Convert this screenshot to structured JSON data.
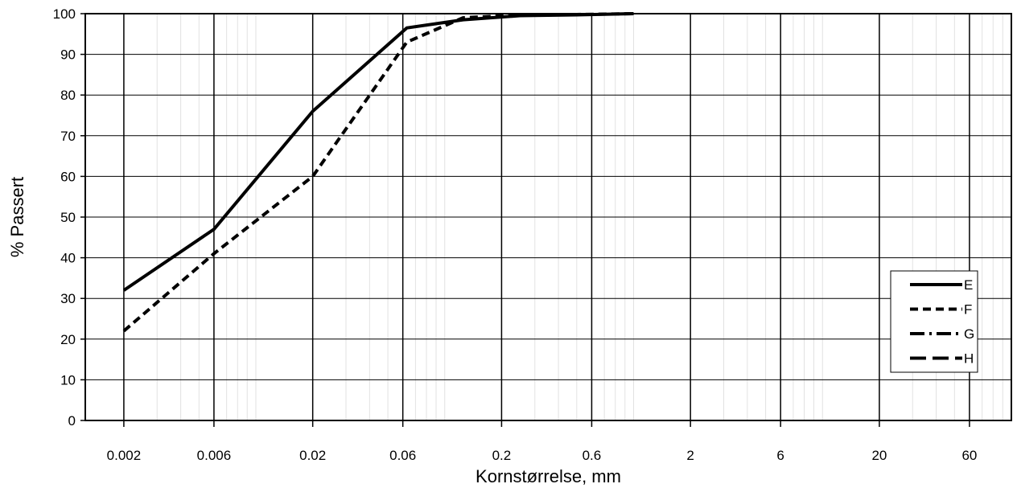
{
  "chart_data": {
    "type": "line",
    "xlabel": "Kornstørrelse, mm",
    "ylabel": "% Passert",
    "x_scale": "log",
    "xlim": [
      0.00125,
      100
    ],
    "ylim": [
      0,
      100
    ],
    "x_ticks": [
      {
        "value": 0.002,
        "label": "0.002"
      },
      {
        "value": 0.006,
        "label": "0.006"
      },
      {
        "value": 0.02,
        "label": "0.02"
      },
      {
        "value": 0.06,
        "label": "0.06"
      },
      {
        "value": 0.2,
        "label": "0.2"
      },
      {
        "value": 0.6,
        "label": "0.6"
      },
      {
        "value": 2,
        "label": "2"
      },
      {
        "value": 6,
        "label": "6"
      },
      {
        "value": 20,
        "label": "20"
      },
      {
        "value": 60,
        "label": "60"
      }
    ],
    "y_ticks": [
      {
        "value": 0,
        "label": "0"
      },
      {
        "value": 10,
        "label": "10"
      },
      {
        "value": 20,
        "label": "20"
      },
      {
        "value": 30,
        "label": "30"
      },
      {
        "value": 40,
        "label": "40"
      },
      {
        "value": 50,
        "label": "50"
      },
      {
        "value": 60,
        "label": "60"
      },
      {
        "value": 70,
        "label": "70"
      },
      {
        "value": 80,
        "label": "80"
      },
      {
        "value": 90,
        "label": "90"
      },
      {
        "value": 100,
        "label": "100"
      }
    ],
    "grid": true,
    "legend": {
      "placement": "right"
    },
    "series": [
      {
        "name": "E",
        "style": "solid",
        "x": [
          0.002,
          0.006,
          0.02,
          0.063,
          0.125,
          0.25,
          0.5,
          1.0
        ],
        "y": [
          32,
          47,
          76,
          96.5,
          98.5,
          99.5,
          99.7,
          100
        ]
      },
      {
        "name": "F",
        "style": "dash",
        "x": [
          0.002,
          0.006,
          0.02,
          0.063,
          0.125,
          0.25,
          0.5,
          1.0
        ],
        "y": [
          22,
          41,
          60,
          93,
          99,
          99.7,
          99.8,
          100
        ]
      },
      {
        "name": "G",
        "style": "dashdot",
        "x": [],
        "y": []
      },
      {
        "name": "H",
        "style": "longdash",
        "x": [],
        "y": []
      }
    ]
  }
}
